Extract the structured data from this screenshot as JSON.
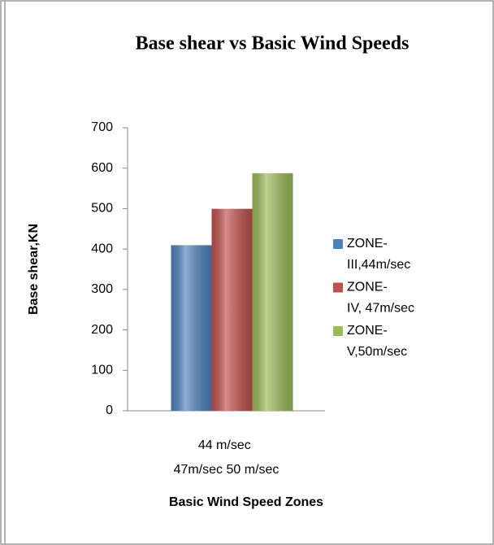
{
  "chart_data": {
    "type": "bar",
    "title": "Base shear vs Basic Wind Speeds",
    "xlabel": "Basic Wind Speed Zones",
    "ylabel": "Base shear,KN",
    "categories": [
      "44 m/sec 47m/sec 50 m/sec"
    ],
    "series": [
      {
        "name": "ZONE-III,44m/sec",
        "color": "#4f81bd",
        "values": [
          410
        ]
      },
      {
        "name": "ZONE-IV, 47m/sec",
        "color": "#c0504d",
        "values": [
          500
        ]
      },
      {
        "name": "ZONE-V,50m/sec",
        "color": "#9bbb59",
        "values": [
          588
        ]
      }
    ],
    "ylim": [
      0,
      700
    ],
    "yticks": [
      0,
      100,
      200,
      300,
      400,
      500,
      600,
      700
    ],
    "grid": false,
    "legend": "right"
  }
}
